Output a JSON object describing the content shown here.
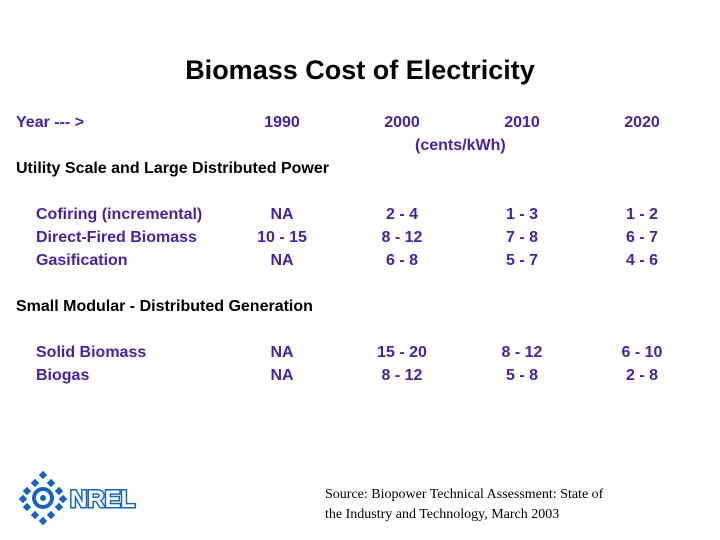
{
  "title": "Biomass Cost of Electricity",
  "header": {
    "year_label": "Year --- >",
    "years": [
      "1990",
      "2000",
      "2010",
      "2020"
    ],
    "units": "(cents/kWh)"
  },
  "sections": [
    {
      "title": "Utility Scale and Large Distributed Power",
      "rows": [
        {
          "label": "Cofiring (incremental)",
          "values": [
            "NA",
            "2 - 4",
            "1 - 3",
            "1 - 2"
          ]
        },
        {
          "label": "Direct-Fired Biomass",
          "values": [
            "10 - 15",
            "8 - 12",
            "7 - 8",
            "6 - 7"
          ]
        },
        {
          "label": "Gasification",
          "values": [
            "NA",
            "6 - 8",
            "5 - 7",
            "4 - 6"
          ]
        }
      ]
    },
    {
      "title": "Small Modular - Distributed Generation",
      "rows": [
        {
          "label": "Solid Biomass",
          "values": [
            "NA",
            "15 - 20",
            "8 - 12",
            "6 - 10"
          ]
        },
        {
          "label": "Biogas",
          "values": [
            "NA",
            "8 - 12",
            "5 - 8",
            "2 - 8"
          ]
        }
      ]
    }
  ],
  "logo": {
    "text": "NREL",
    "icon": "nrel-logo-icon",
    "color": "#1565c0"
  },
  "source": {
    "line1": "Source: Biopower Technical Assessment: State of",
    "line2": "the Industry and Technology,  March 2003"
  },
  "colors": {
    "accent": "#4b1fa5",
    "text": "#000000"
  }
}
